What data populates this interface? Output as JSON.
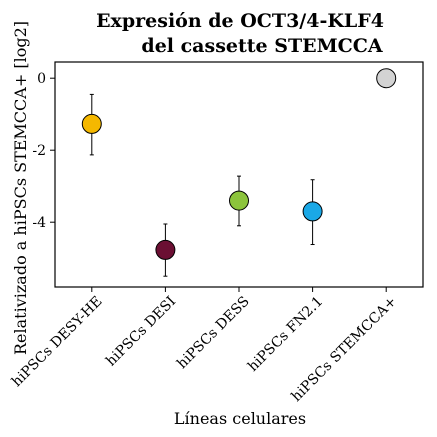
{
  "chart_data": {
    "type": "scatter",
    "title_lines": [
      "Expresión de OCT3/4-KLF4",
      "del cassette STEMCCA"
    ],
    "xlabel": "Líneas celulares",
    "ylabel": "Relativizado a hiPSCs STEMCCA+ [log2]",
    "categories": [
      "hiPSCs DESY-HE",
      "hiPSCs DESI",
      "hiPSCs DESS",
      "hiPSCs FN2.1",
      "hiPSCs STEMCCA+"
    ],
    "yticks": [
      0,
      -2,
      -4
    ],
    "ylim": [
      -5.8,
      0.45
    ],
    "grid": false,
    "legend": "none",
    "points": [
      {
        "category": "hiPSCs DESY-HE",
        "y": -1.27,
        "err_low": -2.13,
        "err_high": -0.45,
        "color": "#F5B800"
      },
      {
        "category": "hiPSCs DESI",
        "y": -4.77,
        "err_low": -5.5,
        "err_high": -4.05,
        "color": "#6B0F33"
      },
      {
        "category": "hiPSCs DESS",
        "y": -3.4,
        "err_low": -4.1,
        "err_high": -2.72,
        "color": "#8CC43C"
      },
      {
        "category": "hiPSCs FN2.1",
        "y": -3.7,
        "err_low": -4.62,
        "err_high": -2.82,
        "color": "#1AA8E6"
      },
      {
        "category": "hiPSCs STEMCCA+",
        "y": 0.0,
        "err_low": -0.1,
        "err_high": 0.1,
        "color": "#D3D3D3"
      }
    ]
  }
}
